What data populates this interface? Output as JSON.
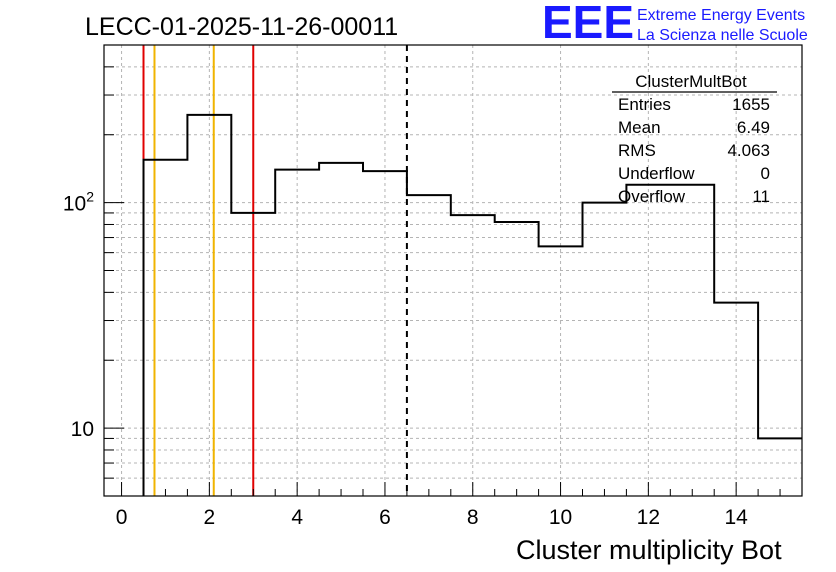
{
  "header": {
    "run_title": "LECC-01-2025-11-26-00011",
    "logo_text": "EEE",
    "logo_line1": "Extreme Energy Events",
    "logo_line2": "La Scienza nelle Scuole"
  },
  "stats": {
    "title": "ClusterMultBot",
    "rows": [
      {
        "label": "Entries",
        "value": "1655"
      },
      {
        "label": "Mean",
        "value": "6.49"
      },
      {
        "label": "RMS",
        "value": "4.063"
      },
      {
        "label": "Underflow",
        "value": "0"
      },
      {
        "label": "Overflow",
        "value": "11"
      }
    ]
  },
  "colors": {
    "histogram": "#000000",
    "red_line": "#e00000",
    "orange_line": "#f0b400",
    "logo_blue": "#1a1aff",
    "grid": "#b4b4b4"
  },
  "chart_data": {
    "type": "bar",
    "style": "step-histogram",
    "xlabel": "Cluster multiplicity Bot",
    "ylabel": "",
    "xlim": [
      -0.4,
      15.5
    ],
    "ylim": [
      5,
      500
    ],
    "yscale": "log",
    "grid": true,
    "x_ticks": [
      0,
      2,
      4,
      6,
      8,
      10,
      12,
      14
    ],
    "y_ticks": [
      {
        "value": 10,
        "label": "10"
      },
      {
        "value": 100,
        "label": "10^2"
      }
    ],
    "bin_edges": [
      0.5,
      1.5,
      2.5,
      3.5,
      4.5,
      5.5,
      6.5,
      7.5,
      8.5,
      9.5,
      10.5,
      11.5,
      12.5,
      13.5,
      14.5,
      15.5
    ],
    "values": [
      155,
      245,
      90,
      140,
      150,
      138,
      108,
      88,
      82,
      64,
      100,
      120,
      120,
      36,
      9
    ],
    "vertical_lines": [
      {
        "x": 0.5,
        "color": "red",
        "style": "solid"
      },
      {
        "x": 0.75,
        "color": "orange",
        "style": "solid"
      },
      {
        "x": 2.1,
        "color": "orange",
        "style": "solid"
      },
      {
        "x": 3.0,
        "color": "red",
        "style": "solid"
      },
      {
        "x": 6.5,
        "color": "black",
        "style": "dashed"
      }
    ]
  }
}
